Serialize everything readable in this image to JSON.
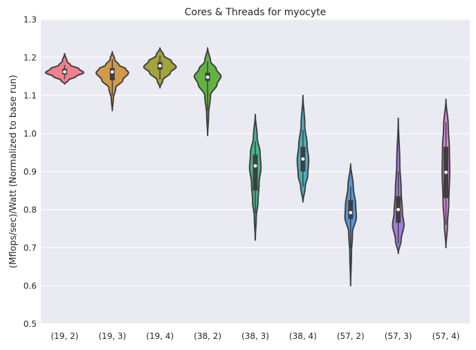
{
  "chart_data": {
    "type": "violin",
    "title": "Cores & Threads for myocyte",
    "xlabel": "",
    "ylabel": "(Mflops/sec)/Watt (Normalized to base run)",
    "ylim": [
      0.5,
      1.3
    ],
    "yticks": [
      "0.5",
      "0.6",
      "0.7",
      "0.8",
      "0.9",
      "1.0",
      "1.1",
      "1.2",
      "1.3"
    ],
    "grid": true,
    "background": "#eaeaf2",
    "categories": [
      "(19, 2)",
      "(19, 3)",
      "(19, 4)",
      "(38, 2)",
      "(38, 3)",
      "(38, 4)",
      "(57, 2)",
      "(57, 3)",
      "(57, 4)"
    ],
    "series": [
      {
        "color": "#f0818d",
        "min": 1.13,
        "max": 1.21,
        "q1": 1.155,
        "median": 1.162,
        "q3": 1.17,
        "whisker_low": 1.143,
        "whisker_high": 1.18,
        "profile": [
          [
            1.13,
            0.0
          ],
          [
            1.14,
            0.2
          ],
          [
            1.15,
            0.6
          ],
          [
            1.16,
            1.0
          ],
          [
            1.17,
            0.75
          ],
          [
            1.18,
            0.3
          ],
          [
            1.19,
            0.12
          ],
          [
            1.21,
            0.0
          ]
        ]
      },
      {
        "color": "#d39a4a",
        "min": 1.06,
        "max": 1.215,
        "q1": 1.14,
        "median": 1.162,
        "q3": 1.172,
        "whisker_low": 1.1,
        "whisker_high": 1.195,
        "profile": [
          [
            1.06,
            0.0
          ],
          [
            1.09,
            0.05
          ],
          [
            1.12,
            0.18
          ],
          [
            1.14,
            0.55
          ],
          [
            1.16,
            0.85
          ],
          [
            1.17,
            0.7
          ],
          [
            1.18,
            0.35
          ],
          [
            1.195,
            0.12
          ],
          [
            1.215,
            0.0
          ]
        ]
      },
      {
        "color": "#a4a23c",
        "min": 1.12,
        "max": 1.225,
        "q1": 1.168,
        "median": 1.178,
        "q3": 1.188,
        "whisker_low": 1.142,
        "whisker_high": 1.205,
        "profile": [
          [
            1.12,
            0.0
          ],
          [
            1.14,
            0.15
          ],
          [
            1.16,
            0.55
          ],
          [
            1.175,
            0.85
          ],
          [
            1.19,
            0.6
          ],
          [
            1.205,
            0.2
          ],
          [
            1.225,
            0.0
          ]
        ]
      },
      {
        "color": "#62b340",
        "min": 0.995,
        "max": 1.225,
        "q1": 1.138,
        "median": 1.148,
        "q3": 1.16,
        "whisker_low": 1.06,
        "whisker_high": 1.19,
        "profile": [
          [
            0.995,
            0.0
          ],
          [
            1.05,
            0.05
          ],
          [
            1.1,
            0.15
          ],
          [
            1.13,
            0.5
          ],
          [
            1.15,
            0.7
          ],
          [
            1.17,
            0.45
          ],
          [
            1.19,
            0.15
          ],
          [
            1.225,
            0.0
          ]
        ]
      },
      {
        "color": "#48b38c",
        "min": 0.72,
        "max": 1.05,
        "q1": 0.85,
        "median": 0.915,
        "q3": 0.945,
        "whisker_low": 0.79,
        "whisker_high": 0.98,
        "profile": [
          [
            0.72,
            0.0
          ],
          [
            0.78,
            0.05
          ],
          [
            0.82,
            0.14
          ],
          [
            0.87,
            0.2
          ],
          [
            0.91,
            0.3
          ],
          [
            0.95,
            0.25
          ],
          [
            0.99,
            0.1
          ],
          [
            1.05,
            0.0
          ]
        ]
      },
      {
        "color": "#4aaec0",
        "min": 0.82,
        "max": 1.1,
        "q1": 0.9,
        "median": 0.933,
        "q3": 0.965,
        "whisker_low": 0.86,
        "whisker_high": 1.01,
        "profile": [
          [
            0.82,
            0.0
          ],
          [
            0.86,
            0.12
          ],
          [
            0.89,
            0.25
          ],
          [
            0.93,
            0.3
          ],
          [
            0.97,
            0.22
          ],
          [
            1.02,
            0.1
          ],
          [
            1.1,
            0.0
          ]
        ]
      },
      {
        "color": "#5796d8",
        "min": 0.6,
        "max": 0.92,
        "q1": 0.775,
        "median": 0.792,
        "q3": 0.825,
        "whisker_low": 0.7,
        "whisker_high": 0.86,
        "profile": [
          [
            0.6,
            0.0
          ],
          [
            0.68,
            0.04
          ],
          [
            0.74,
            0.1
          ],
          [
            0.78,
            0.3
          ],
          [
            0.81,
            0.27
          ],
          [
            0.86,
            0.14
          ],
          [
            0.92,
            0.0
          ]
        ]
      },
      {
        "color": "#a37ee0",
        "min": 0.685,
        "max": 1.04,
        "q1": 0.765,
        "median": 0.8,
        "q3": 0.835,
        "whisker_low": 0.71,
        "whisker_high": 0.9,
        "profile": [
          [
            0.685,
            0.0
          ],
          [
            0.72,
            0.15
          ],
          [
            0.76,
            0.3
          ],
          [
            0.79,
            0.22
          ],
          [
            0.85,
            0.15
          ],
          [
            0.92,
            0.08
          ],
          [
            1.04,
            0.0
          ]
        ]
      },
      {
        "color": "#d58ad8",
        "min": 0.7,
        "max": 1.09,
        "q1": 0.83,
        "median": 0.898,
        "q3": 0.965,
        "whisker_low": 0.76,
        "whisker_high": 1.03,
        "profile": [
          [
            0.7,
            0.0
          ],
          [
            0.76,
            0.08
          ],
          [
            0.82,
            0.15
          ],
          [
            0.9,
            0.2
          ],
          [
            0.96,
            0.18
          ],
          [
            1.02,
            0.12
          ],
          [
            1.09,
            0.0
          ]
        ]
      }
    ]
  }
}
